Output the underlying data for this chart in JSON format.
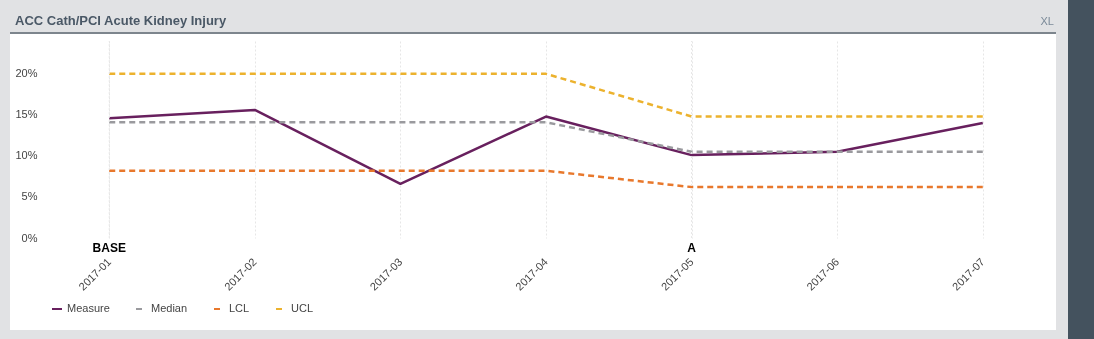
{
  "chart_data": {
    "type": "line",
    "title": "ACC Cath/PCI Acute Kidney Injury",
    "categories": [
      "2017-01",
      "2017-02",
      "2017-03",
      "2017-04",
      "2017-05",
      "2017-06",
      "2017-07"
    ],
    "series": [
      {
        "name": "Measure",
        "color": "#68205e",
        "line_style": "solid",
        "values": [
          14.6,
          15.6,
          6.6,
          14.8,
          10.1,
          10.5,
          14.0
        ]
      },
      {
        "name": "Median",
        "color": "#9a9a9e",
        "line_style": "dashed",
        "values": [
          14.1,
          14.1,
          14.1,
          14.1,
          10.5,
          10.5,
          10.5
        ]
      },
      {
        "name": "LCL",
        "color": "#e8782c",
        "line_style": "dashed",
        "values": [
          8.2,
          8.2,
          8.2,
          8.2,
          6.2,
          6.2,
          6.2
        ]
      },
      {
        "name": "UCL",
        "color": "#ecb22e",
        "line_style": "dashed",
        "values": [
          20,
          20,
          20,
          20,
          14.8,
          14.8,
          14.8
        ]
      }
    ],
    "ylim": [
      0,
      24
    ],
    "yticks": [
      {
        "value": 0,
        "label": "0%"
      },
      {
        "value": 5,
        "label": "5%"
      },
      {
        "value": 10,
        "label": "10%"
      },
      {
        "value": 15,
        "label": "15%"
      },
      {
        "value": 20,
        "label": "20%"
      }
    ],
    "annotations": [
      "XL"
    ],
    "ref_lines": [
      {
        "axis": "x",
        "value": "2017-01",
        "label": "BASE"
      },
      {
        "axis": "x",
        "value": "2017-05",
        "label": "A"
      }
    ],
    "grid": "x",
    "legend": "bottom left",
    "marker": "none"
  }
}
